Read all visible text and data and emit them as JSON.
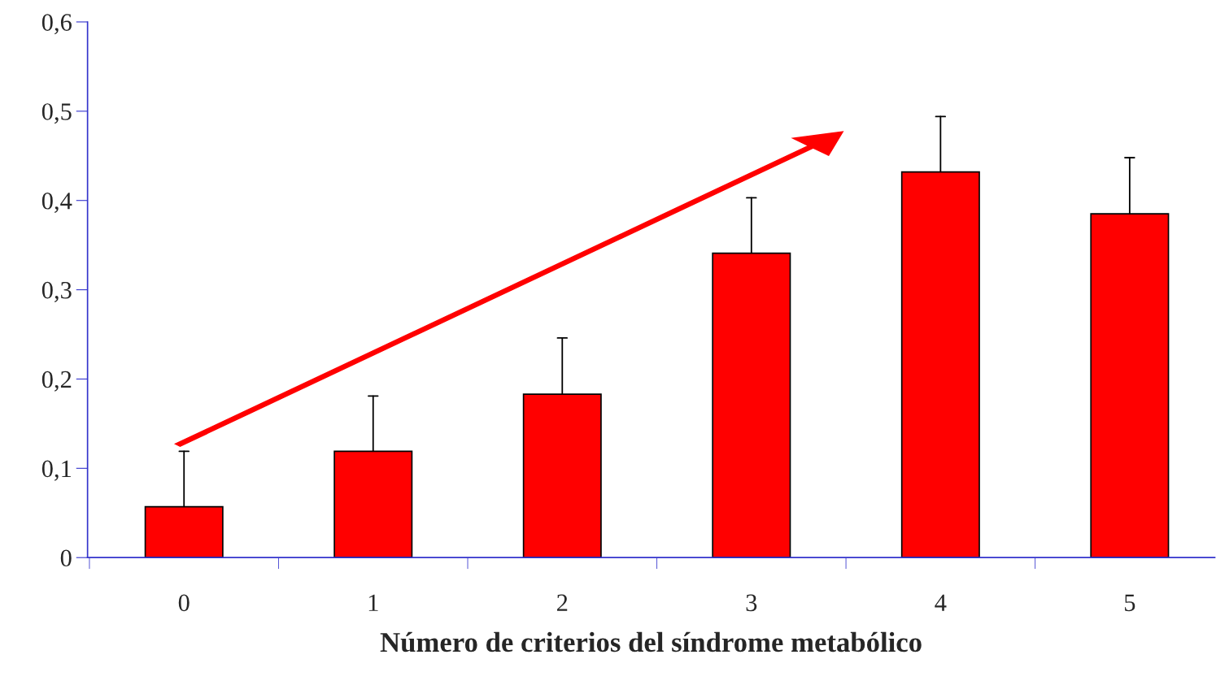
{
  "chart_data": {
    "type": "bar",
    "xlabel": "Número de criterios del síndrome metabólico",
    "categories": [
      "0",
      "1",
      "2",
      "3",
      "4",
      "5"
    ],
    "values": [
      0.057,
      0.119,
      0.183,
      0.341,
      0.432,
      0.385
    ],
    "errors": [
      [
        0.057,
        0.119
      ],
      [
        0.119,
        0.181
      ],
      [
        0.183,
        0.246
      ],
      [
        0.341,
        0.403
      ],
      [
        0.432,
        0.494
      ],
      [
        0.385,
        0.448
      ]
    ],
    "color": "#ff0000",
    "ylim": [
      0,
      0.6
    ],
    "yticks": [
      0,
      {
        "value": 0.1,
        "label": "0,1"
      },
      {
        "value": 0.2,
        "label": "0,2"
      },
      {
        "value": 0.3,
        "label": "0,3"
      },
      {
        "value": 0.4,
        "label": "0,4"
      },
      {
        "value": 0.5,
        "label": "0,5"
      },
      {
        "value": 0.6,
        "label": "0,6"
      }
    ],
    "grid": false,
    "legend": false
  }
}
